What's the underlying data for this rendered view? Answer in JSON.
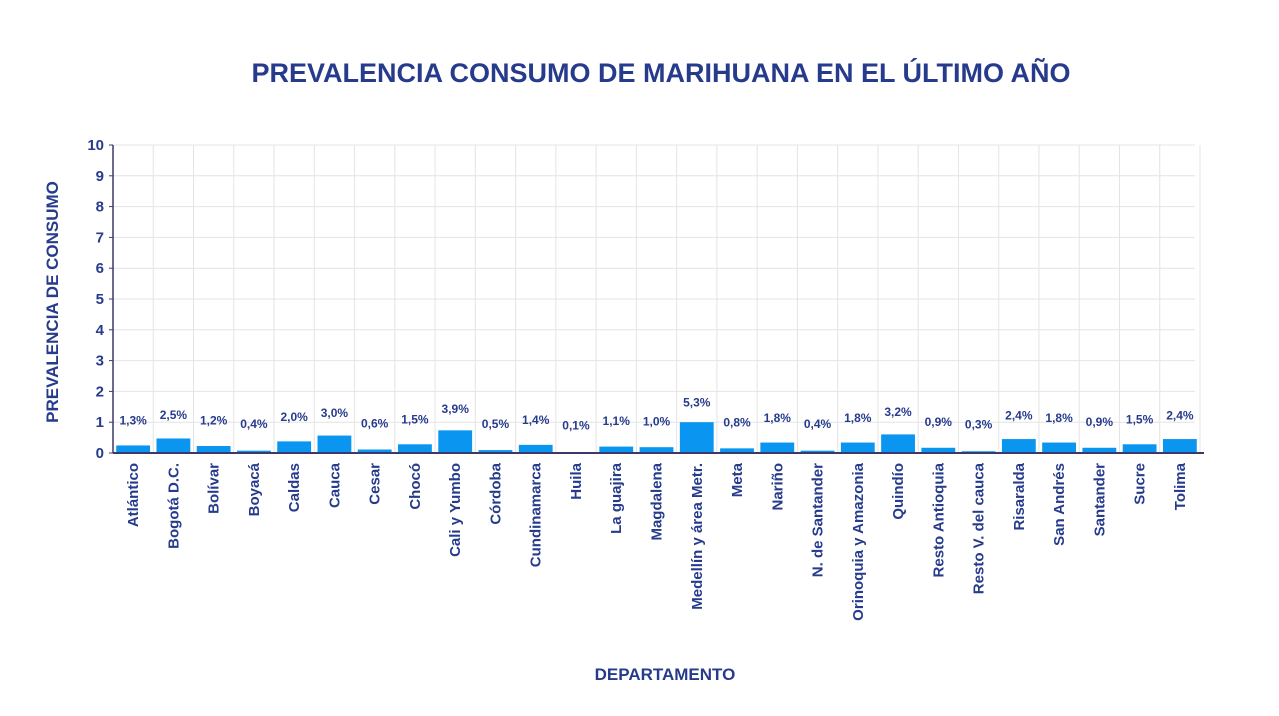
{
  "chart_data": {
    "type": "bar",
    "title": "PREVALENCIA CONSUMO DE MARIHUANA EN EL ÚLTIMO AÑO",
    "xlabel": "DEPARTAMENTO",
    "ylabel": "PREVALENCIA DE CONSUMO",
    "ylim": [
      0,
      10
    ],
    "yticks": [
      "0",
      "1",
      "2",
      "3",
      "4",
      "5",
      "6",
      "7",
      "8",
      "9",
      "10"
    ],
    "grid": true,
    "categories": [
      "Atlántico",
      "Bogotá D.C.",
      "Bolívar",
      "Boyacá",
      "Caldas",
      "Cauca",
      "Cesar",
      "Chocó",
      "Cali y Yumbo",
      "Córdoba",
      "Cundinamarca",
      "Huila",
      "La guajira",
      "Magdalena",
      "Medellín y área Metr.",
      "Meta",
      "Nariño",
      "N. de Santander",
      "Orinoquia y Amazonia",
      "Quindío",
      "Resto Antioquia",
      "Resto V. del cauca",
      "Risaralda",
      "San Andrés",
      "Santander",
      "Sucre",
      "Tolima"
    ],
    "values": [
      1.3,
      2.5,
      1.2,
      0.4,
      2.0,
      3.0,
      0.6,
      1.5,
      3.9,
      0.5,
      1.4,
      0.1,
      1.1,
      1.0,
      5.3,
      0.8,
      1.8,
      0.4,
      1.8,
      3.2,
      0.9,
      0.3,
      2.4,
      1.8,
      0.9,
      1.5,
      2.4
    ],
    "data_labels": [
      "1,3%",
      "2,5%",
      "1,2%",
      "0,4%",
      "2,0%",
      "3,0%",
      "0,6%",
      "1,5%",
      "3,9%",
      "0,5%",
      "1,4%",
      "0,1%",
      "1,1%",
      "1,0%",
      "5,3%",
      "0,8%",
      "1,8%",
      "0,4%",
      "1,8%",
      "3,2%",
      "0,9%",
      "0,3%",
      "2,4%",
      "1,8%",
      "0,9%",
      "1,5%",
      "2,4%"
    ],
    "colors": {
      "bar": "#0a96f0",
      "text": "#263b8c",
      "grid": "#e4e4e4",
      "axis": "#3a3a6a"
    }
  }
}
